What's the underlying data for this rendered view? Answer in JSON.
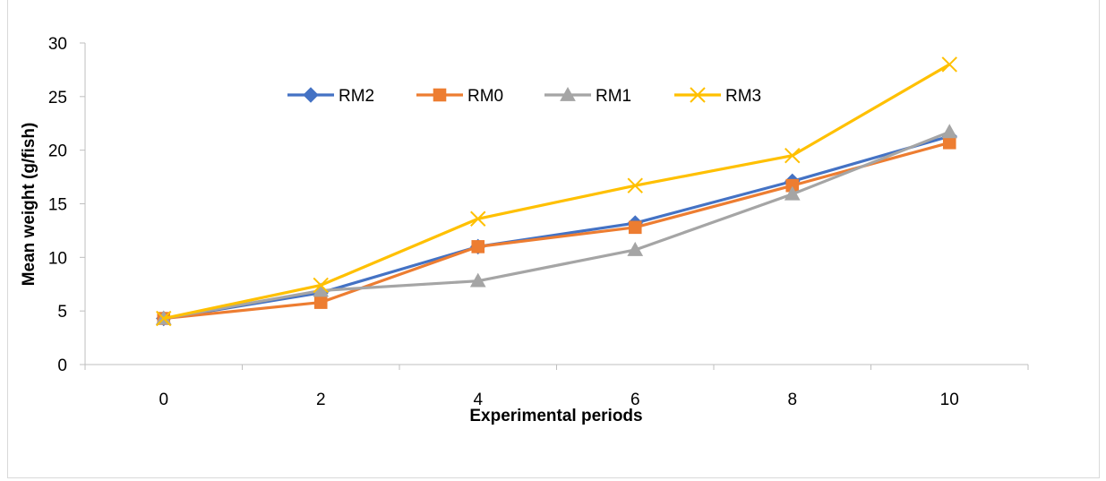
{
  "chart_data": {
    "type": "line",
    "title": "",
    "xlabel": "Experimental periods",
    "ylabel": "Mean weight (g/fish)",
    "categories": [
      "0",
      "2",
      "4",
      "6",
      "8",
      "10"
    ],
    "ylim": [
      0,
      30
    ],
    "yticks": [
      "0",
      "5",
      "10",
      "15",
      "20",
      "25",
      "30"
    ],
    "grid": false,
    "legend_position": "top",
    "series": [
      {
        "name": "RM2",
        "color": "#4472C4",
        "marker": "diamond",
        "values": [
          4.3,
          6.7,
          11.0,
          13.2,
          17.1,
          21.3
        ]
      },
      {
        "name": "RM0",
        "color": "#ED7D31",
        "marker": "square",
        "values": [
          4.3,
          5.8,
          11.0,
          12.8,
          16.7,
          20.7
        ]
      },
      {
        "name": "RM1",
        "color": "#A5A5A5",
        "marker": "triangle",
        "values": [
          4.3,
          6.9,
          7.8,
          10.7,
          15.9,
          21.7
        ]
      },
      {
        "name": "RM3",
        "color": "#FFC000",
        "marker": "x",
        "values": [
          4.3,
          7.4,
          13.6,
          16.7,
          19.5,
          28.0
        ]
      }
    ]
  }
}
